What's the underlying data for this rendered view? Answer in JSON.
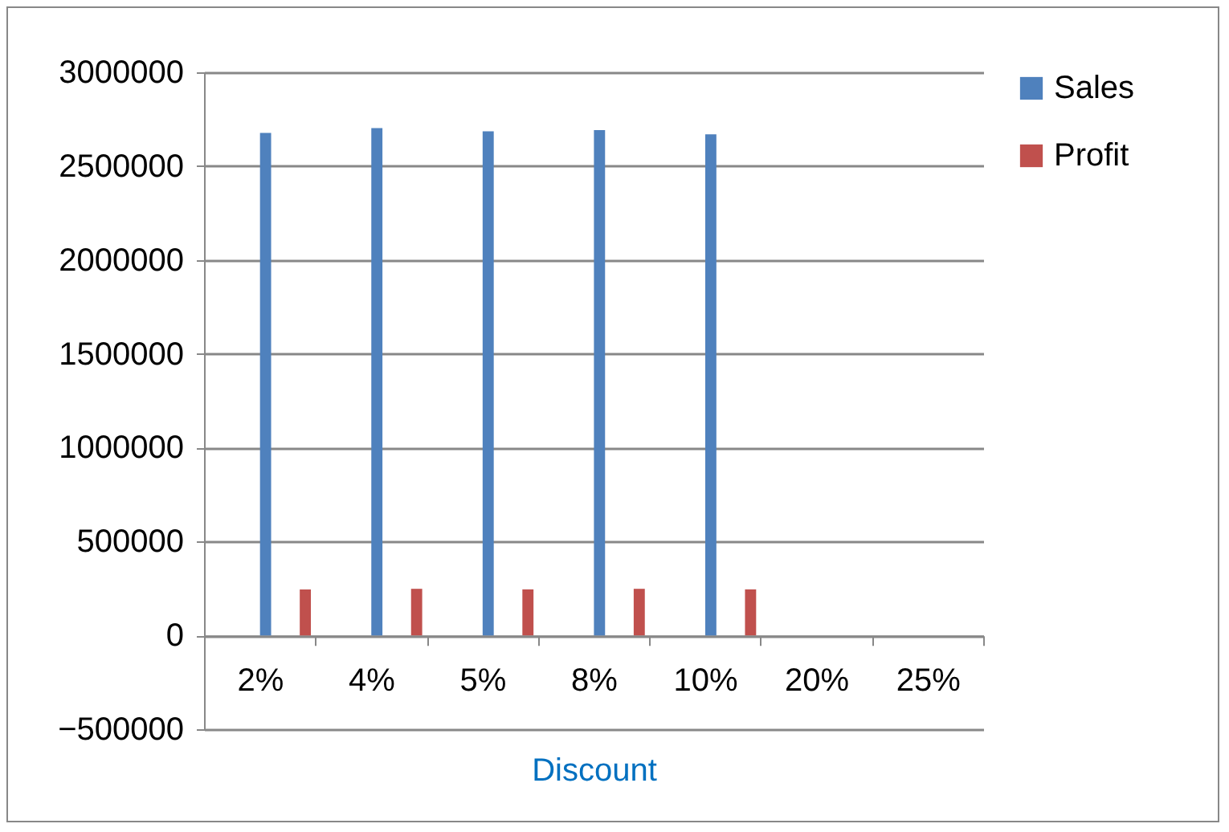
{
  "chart_data": {
    "type": "bar",
    "xlabel": "Discount",
    "categories": [
      "2%",
      "4%",
      "5%",
      "8%",
      "10%",
      "20%",
      "25%"
    ],
    "series": [
      {
        "name": "Sales",
        "color": "#4f81bd",
        "values": [
          2677000,
          2703000,
          2686000,
          2692000,
          2669000,
          null,
          null
        ]
      },
      {
        "name": "Profit",
        "color": "#c0504d",
        "values": [
          245000,
          248000,
          245000,
          248000,
          245000,
          null,
          null
        ]
      }
    ],
    "ylim": [
      -500000,
      3000000
    ],
    "yticks": [
      -500000,
      0,
      500000,
      1000000,
      1500000,
      2000000,
      2500000,
      3000000
    ],
    "grid": "y",
    "legend": "right"
  }
}
